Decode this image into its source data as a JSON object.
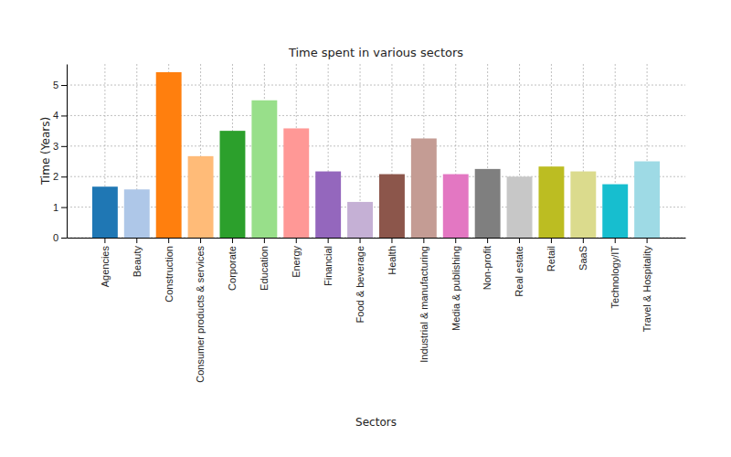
{
  "chart_data": {
    "type": "bar",
    "title": "Time spent in various sectors",
    "x_label": "Sectors",
    "y_label": "Time (Years)",
    "categories": [
      "Agencies",
      "Beauty",
      "Construction",
      "Consumer products & services",
      "Corporate",
      "Education",
      "Energy",
      "Financial",
      "Food & beverage",
      "Health",
      "Industrial & manufacturing",
      "Media & publishing",
      "Non-profit",
      "Real estate",
      "Retail",
      "SaaS",
      "Technology/IT",
      "Travel & Hospitality"
    ],
    "values": [
      1.67,
      1.58,
      5.42,
      2.67,
      3.5,
      4.5,
      3.58,
      2.17,
      1.17,
      2.08,
      3.25,
      2.08,
      2.25,
      2.0,
      2.33,
      2.17,
      1.75,
      2.5
    ],
    "colors": [
      "#1f77b4",
      "#aec7e8",
      "#ff7f0e",
      "#ffbb78",
      "#2ca02c",
      "#98df8a",
      "#ff9896",
      "#9467bd",
      "#c5b0d5",
      "#8c564b",
      "#c49c94",
      "#e377c2",
      "#7f7f7f",
      "#c7c7c7",
      "#bcbd22",
      "#dbdb8d",
      "#17becf",
      "#9edae5"
    ],
    "ylim": [
      0,
      5.69
    ],
    "yticks": [
      0,
      1,
      2,
      3,
      4,
      5
    ],
    "grid": true
  }
}
